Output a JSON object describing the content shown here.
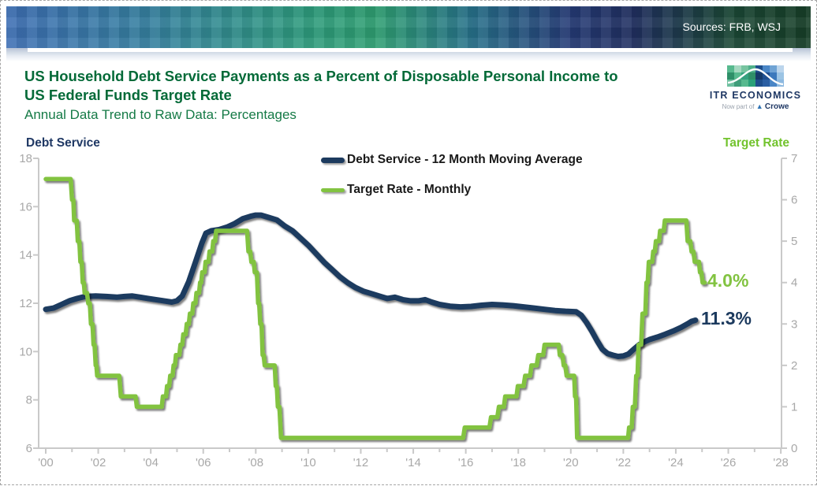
{
  "banner": {
    "sources_label": "Sources: FRB, WSJ"
  },
  "header": {
    "title_line1": "US Household Debt Service Payments as a Percent of Disposable Personal Income to",
    "title_line2": "US Federal Funds Target Rate",
    "subtitle": "Annual Data Trend to Raw Data: Percentages"
  },
  "logo": {
    "name": "ITR ECONOMICS",
    "tagline_prefix": "Now part of",
    "tagline_brand": "Crowe"
  },
  "colors": {
    "navy_series": "#1c3a5e",
    "green_series": "#82c341",
    "title_green": "#046a38",
    "subtitle_green": "#157a46",
    "axis_gray": "#a8a8a8"
  },
  "chart_data": {
    "type": "line",
    "title": "US Household Debt Service Payments as a Percent of Disposable Personal Income to US Federal Funds Target Rate",
    "subtitle": "Annual Data Trend to Raw Data: Percentages",
    "grid": "off",
    "legend_position": "top-center",
    "x_axis": {
      "start_year": 2000,
      "end_year": 2028,
      "tick_labels": [
        "'00",
        "'02",
        "'04",
        "'06",
        "'08",
        "'10",
        "'12",
        "'14",
        "'16",
        "'18",
        "'20",
        "'22",
        "'24",
        "'26",
        "'28"
      ]
    },
    "left_axis": {
      "label": "Debt Service",
      "min": 6,
      "max": 18,
      "ticks": [
        18,
        16,
        14,
        12,
        10,
        8,
        6
      ]
    },
    "right_axis": {
      "label": "Target Rate",
      "min": 0,
      "max": 7,
      "ticks": [
        7,
        6,
        5,
        4,
        3,
        2,
        1,
        0
      ]
    },
    "series": [
      {
        "name": "Debt Service - 12 Month Moving Average",
        "axis": "left",
        "color": "#1c3a5e",
        "end_label": "11.3%",
        "points": [
          [
            0,
            11.75
          ],
          [
            0.3,
            11.8
          ],
          [
            0.6,
            11.95
          ],
          [
            0.9,
            12.1
          ],
          [
            1.2,
            12.2
          ],
          [
            1.5,
            12.28
          ],
          [
            1.9,
            12.3
          ],
          [
            2.3,
            12.28
          ],
          [
            2.7,
            12.25
          ],
          [
            3.0,
            12.28
          ],
          [
            3.3,
            12.3
          ],
          [
            3.6,
            12.25
          ],
          [
            3.9,
            12.2
          ],
          [
            4.2,
            12.15
          ],
          [
            4.5,
            12.1
          ],
          [
            4.8,
            12.05
          ],
          [
            5.0,
            12.1
          ],
          [
            5.2,
            12.3
          ],
          [
            5.45,
            12.9
          ],
          [
            5.7,
            13.7
          ],
          [
            5.95,
            14.5
          ],
          [
            6.1,
            14.9
          ],
          [
            6.3,
            15.0
          ],
          [
            6.6,
            15.05
          ],
          [
            6.9,
            15.15
          ],
          [
            7.2,
            15.3
          ],
          [
            7.5,
            15.5
          ],
          [
            7.8,
            15.6
          ],
          [
            8.0,
            15.65
          ],
          [
            8.2,
            15.65
          ],
          [
            8.5,
            15.55
          ],
          [
            8.8,
            15.45
          ],
          [
            9.1,
            15.2
          ],
          [
            9.4,
            15.0
          ],
          [
            9.7,
            14.7
          ],
          [
            10.0,
            14.4
          ],
          [
            10.3,
            14.05
          ],
          [
            10.6,
            13.7
          ],
          [
            10.9,
            13.4
          ],
          [
            11.2,
            13.1
          ],
          [
            11.5,
            12.85
          ],
          [
            11.8,
            12.65
          ],
          [
            12.1,
            12.5
          ],
          [
            12.4,
            12.4
          ],
          [
            12.7,
            12.3
          ],
          [
            13.0,
            12.2
          ],
          [
            13.3,
            12.25
          ],
          [
            13.6,
            12.15
          ],
          [
            13.9,
            12.1
          ],
          [
            14.2,
            12.1
          ],
          [
            14.45,
            12.15
          ],
          [
            14.7,
            12.05
          ],
          [
            15.0,
            11.95
          ],
          [
            15.4,
            11.88
          ],
          [
            15.8,
            11.85
          ],
          [
            16.2,
            11.87
          ],
          [
            16.6,
            11.92
          ],
          [
            17.0,
            11.95
          ],
          [
            17.4,
            11.93
          ],
          [
            17.8,
            11.9
          ],
          [
            18.2,
            11.85
          ],
          [
            18.6,
            11.8
          ],
          [
            19.0,
            11.75
          ],
          [
            19.4,
            11.7
          ],
          [
            19.8,
            11.67
          ],
          [
            20.2,
            11.65
          ],
          [
            20.4,
            11.5
          ],
          [
            20.6,
            11.2
          ],
          [
            20.8,
            10.85
          ],
          [
            21.0,
            10.45
          ],
          [
            21.2,
            10.1
          ],
          [
            21.4,
            9.92
          ],
          [
            21.6,
            9.85
          ],
          [
            21.8,
            9.8
          ],
          [
            22.0,
            9.82
          ],
          [
            22.2,
            9.9
          ],
          [
            22.4,
            10.1
          ],
          [
            22.6,
            10.28
          ],
          [
            22.8,
            10.4
          ],
          [
            23.0,
            10.5
          ],
          [
            23.3,
            10.6
          ],
          [
            23.6,
            10.72
          ],
          [
            23.9,
            10.85
          ],
          [
            24.2,
            11.0
          ],
          [
            24.45,
            11.15
          ],
          [
            24.6,
            11.25
          ],
          [
            24.75,
            11.3
          ]
        ]
      },
      {
        "name": "Target Rate - Monthly",
        "axis": "right",
        "color": "#82c341",
        "end_label": "4.0%",
        "points": [
          [
            0,
            6.5
          ],
          [
            0.95,
            6.5
          ],
          [
            1.0,
            6.0
          ],
          [
            1.05,
            6.0
          ],
          [
            1.08,
            5.5
          ],
          [
            1.18,
            5.5
          ],
          [
            1.22,
            5.0
          ],
          [
            1.28,
            5.0
          ],
          [
            1.32,
            4.5
          ],
          [
            1.37,
            4.5
          ],
          [
            1.41,
            4.0
          ],
          [
            1.45,
            4.0
          ],
          [
            1.48,
            3.75
          ],
          [
            1.57,
            3.75
          ],
          [
            1.62,
            3.5
          ],
          [
            1.68,
            3.5
          ],
          [
            1.72,
            3.0
          ],
          [
            1.78,
            3.0
          ],
          [
            1.82,
            2.5
          ],
          [
            1.86,
            2.5
          ],
          [
            1.9,
            2.0
          ],
          [
            1.93,
            2.0
          ],
          [
            1.96,
            1.75
          ],
          [
            2.8,
            1.75
          ],
          [
            2.86,
            1.25
          ],
          [
            3.42,
            1.25
          ],
          [
            3.47,
            1.0
          ],
          [
            4.42,
            1.0
          ],
          [
            4.46,
            1.25
          ],
          [
            4.58,
            1.25
          ],
          [
            4.62,
            1.5
          ],
          [
            4.7,
            1.5
          ],
          [
            4.74,
            1.75
          ],
          [
            4.83,
            1.75
          ],
          [
            4.87,
            2.0
          ],
          [
            4.92,
            2.0
          ],
          [
            4.96,
            2.25
          ],
          [
            5.09,
            2.25
          ],
          [
            5.13,
            2.5
          ],
          [
            5.2,
            2.5
          ],
          [
            5.24,
            2.75
          ],
          [
            5.33,
            2.75
          ],
          [
            5.37,
            3.0
          ],
          [
            5.45,
            3.0
          ],
          [
            5.49,
            3.25
          ],
          [
            5.58,
            3.25
          ],
          [
            5.62,
            3.5
          ],
          [
            5.7,
            3.5
          ],
          [
            5.74,
            3.75
          ],
          [
            5.84,
            3.75
          ],
          [
            5.88,
            4.0
          ],
          [
            5.92,
            4.0
          ],
          [
            5.96,
            4.25
          ],
          [
            6.05,
            4.25
          ],
          [
            6.09,
            4.5
          ],
          [
            6.2,
            4.5
          ],
          [
            6.24,
            4.75
          ],
          [
            6.34,
            4.75
          ],
          [
            6.38,
            5.0
          ],
          [
            6.45,
            5.0
          ],
          [
            6.49,
            5.25
          ],
          [
            7.67,
            5.25
          ],
          [
            7.72,
            4.75
          ],
          [
            7.79,
            4.75
          ],
          [
            7.83,
            4.5
          ],
          [
            7.92,
            4.5
          ],
          [
            7.96,
            4.25
          ],
          [
            8.04,
            4.25
          ],
          [
            8.09,
            3.5
          ],
          [
            8.13,
            3.5
          ],
          [
            8.17,
            3.0
          ],
          [
            8.22,
            3.0
          ],
          [
            8.26,
            2.25
          ],
          [
            8.3,
            2.25
          ],
          [
            8.34,
            2.0
          ],
          [
            8.72,
            2.0
          ],
          [
            8.76,
            1.5
          ],
          [
            8.8,
            1.5
          ],
          [
            8.84,
            1.0
          ],
          [
            8.9,
            1.0
          ],
          [
            8.96,
            0.25
          ],
          [
            15.9,
            0.25
          ],
          [
            15.96,
            0.5
          ],
          [
            16.9,
            0.5
          ],
          [
            16.96,
            0.75
          ],
          [
            17.2,
            0.75
          ],
          [
            17.26,
            1.0
          ],
          [
            17.45,
            1.0
          ],
          [
            17.5,
            1.25
          ],
          [
            17.93,
            1.25
          ],
          [
            17.98,
            1.5
          ],
          [
            18.2,
            1.5
          ],
          [
            18.26,
            1.75
          ],
          [
            18.45,
            1.75
          ],
          [
            18.5,
            2.0
          ],
          [
            18.7,
            2.0
          ],
          [
            18.76,
            2.25
          ],
          [
            18.95,
            2.25
          ],
          [
            19.0,
            2.5
          ],
          [
            19.54,
            2.5
          ],
          [
            19.58,
            2.25
          ],
          [
            19.68,
            2.25
          ],
          [
            19.73,
            2.0
          ],
          [
            19.79,
            2.0
          ],
          [
            19.84,
            1.75
          ],
          [
            20.13,
            1.75
          ],
          [
            20.16,
            1.25
          ],
          [
            20.2,
            1.25
          ],
          [
            20.24,
            0.25
          ],
          [
            22.18,
            0.25
          ],
          [
            22.22,
            0.5
          ],
          [
            22.32,
            0.5
          ],
          [
            22.36,
            1.0
          ],
          [
            22.44,
            1.0
          ],
          [
            22.49,
            1.75
          ],
          [
            22.54,
            1.75
          ],
          [
            22.58,
            2.5
          ],
          [
            22.68,
            2.5
          ],
          [
            22.73,
            3.25
          ],
          [
            22.84,
            3.25
          ],
          [
            22.88,
            4.0
          ],
          [
            22.93,
            4.0
          ],
          [
            22.97,
            4.5
          ],
          [
            23.1,
            4.5
          ],
          [
            23.14,
            4.75
          ],
          [
            23.2,
            4.75
          ],
          [
            23.24,
            5.0
          ],
          [
            23.36,
            5.0
          ],
          [
            23.4,
            5.25
          ],
          [
            23.54,
            5.25
          ],
          [
            23.58,
            5.5
          ],
          [
            24.4,
            5.5
          ],
          [
            24.45,
            5.0
          ],
          [
            24.55,
            5.0
          ],
          [
            24.6,
            4.75
          ],
          [
            24.67,
            4.75
          ],
          [
            24.72,
            4.5
          ],
          [
            24.88,
            4.5
          ],
          [
            24.92,
            4.25
          ],
          [
            24.97,
            4.25
          ],
          [
            25.02,
            4.0
          ],
          [
            25.1,
            4.0
          ]
        ]
      }
    ]
  }
}
